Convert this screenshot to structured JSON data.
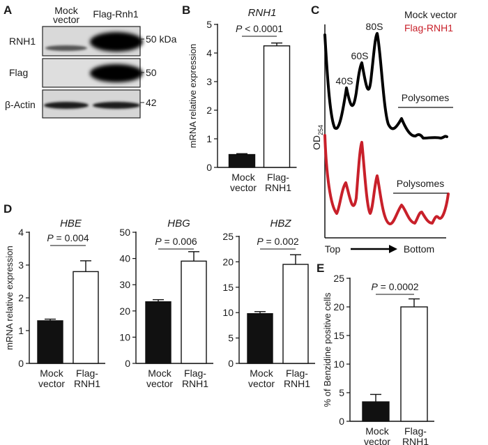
{
  "panels": {
    "A": {
      "letter": "A",
      "col1": [
        "Mock",
        "vector"
      ],
      "col2": "Flag-Rnh1",
      "rows": [
        {
          "label": "RNH1",
          "size": "50 kDa"
        },
        {
          "label": "Flag",
          "size": "50"
        },
        {
          "label": "β-Actin",
          "size": "42"
        }
      ]
    },
    "C": {
      "letter": "C",
      "legend": [
        {
          "name": "Mock vector",
          "color": "#000000"
        },
        {
          "name": "Flag-RNH1",
          "color": "#c8202a"
        }
      ],
      "peaks": [
        "40S",
        "60S",
        "80S"
      ],
      "polysomes_top": "Polysomes",
      "polysomes_bottom": "Polysomes",
      "yaxis_main": "OD",
      "yaxis_sub": "254",
      "xleft": "Top",
      "xright": "Bottom"
    }
  },
  "chart_data": [
    {
      "type": "bar",
      "panel": "B",
      "title": "RNH1",
      "ylabel": "mRNA relative expression",
      "ylim": [
        0,
        5
      ],
      "yticks": [
        0,
        1,
        2,
        3,
        4,
        5
      ],
      "categories": [
        [
          "Mock",
          "vector"
        ],
        [
          "Flag-",
          "RNH1"
        ]
      ],
      "values": [
        0.45,
        4.25
      ],
      "errors": [
        0.03,
        0.1
      ],
      "fills": [
        "#111111",
        "#ffffff"
      ],
      "pvalue": {
        "prefix": "P",
        "text": " < 0.0001"
      }
    },
    {
      "type": "bar",
      "panel": "D",
      "title": "HBE",
      "ylabel": "mRNA relative expression",
      "ylim": [
        0,
        4
      ],
      "yticks": [
        0,
        1,
        2,
        3,
        4
      ],
      "categories": [
        [
          "Mock",
          "vector"
        ],
        [
          "Flag-",
          "RNH1"
        ]
      ],
      "values": [
        1.3,
        2.8
      ],
      "errors": [
        0.05,
        0.33
      ],
      "fills": [
        "#111111",
        "#ffffff"
      ],
      "pvalue": {
        "prefix": "P",
        "text": " = 0.004"
      }
    },
    {
      "type": "bar",
      "panel": "D",
      "title": "HBG",
      "ylim": [
        0,
        50
      ],
      "yticks": [
        0,
        10,
        20,
        30,
        40,
        50
      ],
      "categories": [
        [
          "Mock",
          "vector"
        ],
        [
          "Flag-",
          "RNH1"
        ]
      ],
      "values": [
        23.5,
        39.0
      ],
      "errors": [
        0.8,
        3.6
      ],
      "fills": [
        "#111111",
        "#ffffff"
      ],
      "pvalue": {
        "prefix": "P",
        "text": " = 0.006"
      }
    },
    {
      "type": "bar",
      "panel": "D",
      "title": "HBZ",
      "ylim": [
        0,
        25
      ],
      "yticks": [
        0,
        5,
        10,
        15,
        20,
        25
      ],
      "categories": [
        [
          "Mock",
          "vector"
        ],
        [
          "Flag-",
          "RNH1"
        ]
      ],
      "values": [
        9.8,
        19.5
      ],
      "errors": [
        0.4,
        1.9
      ],
      "fills": [
        "#111111",
        "#ffffff"
      ],
      "pvalue": {
        "prefix": "P",
        "text": " = 0.002"
      }
    },
    {
      "type": "bar",
      "panel": "E",
      "title": "",
      "ylabel": "% of Benzidine positive cells",
      "ylim": [
        0,
        25
      ],
      "yticks": [
        0,
        5,
        10,
        15,
        20,
        25
      ],
      "categories": [
        [
          "Mock",
          "vector"
        ],
        [
          "Flag-",
          "RNH1"
        ]
      ],
      "values": [
        3.4,
        20.0
      ],
      "errors": [
        1.3,
        1.4
      ],
      "fills": [
        "#111111",
        "#ffffff"
      ],
      "pvalue": {
        "prefix": "P",
        "text": " = 0.0002"
      }
    }
  ]
}
